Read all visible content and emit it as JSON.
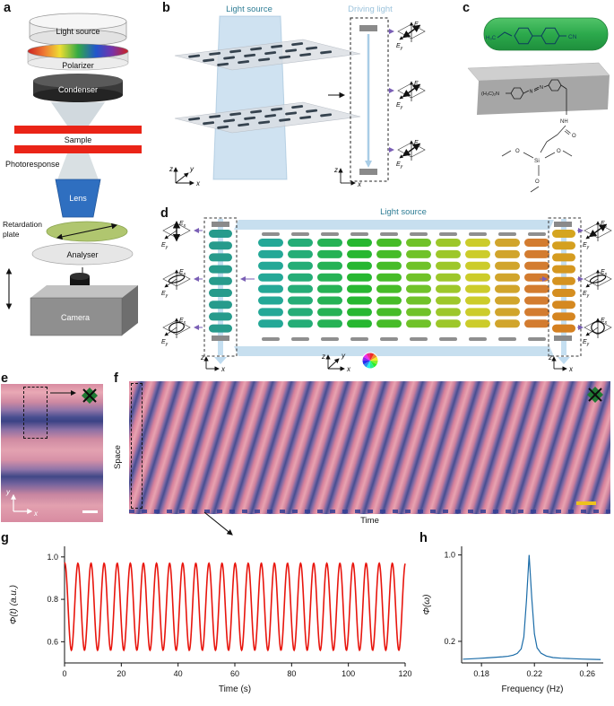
{
  "sym": {
    "E": "E",
    "x": "x",
    "y": "y",
    "z": "z"
  },
  "panels": {
    "a": {
      "label": "a",
      "light_source": "Light source",
      "polarizer": "Polarizer",
      "condenser": "Condenser",
      "sample": "Sample",
      "photoresponse": "Photoresponse",
      "lens": "Lens",
      "retardation_line1": "Retardation",
      "retardation_line2": "plate",
      "analyser": "Analyser",
      "camera": "Camera"
    },
    "b": {
      "label": "b",
      "light_source": "Light source",
      "driving_light": "Driving light"
    },
    "c": {
      "label": "c",
      "top_molecule": {
        "left_group": "H₃C",
        "right_group": "CN"
      },
      "bottom_molecule": {
        "amine_group": "(H₃C)₂N",
        "azo_n1": "N",
        "azo_n2": "N",
        "amide_group": "NH",
        "carbonyl_o": "O",
        "silicon": "Si",
        "ethoxy_o1": "O",
        "ethoxy_o2": "O",
        "ethoxy_o3": "O"
      }
    },
    "d": {
      "label": "d",
      "light_source": "Light source"
    },
    "e": {
      "label": "e"
    },
    "f": {
      "label": "f",
      "space_axis_label": "Space",
      "time_axis_label": "Time"
    },
    "g": {
      "label": "g"
    },
    "h": {
      "label": "h"
    }
  },
  "colors": {
    "trace_g_red": "#e8150d",
    "trace_h_blue": "#1b6ca8",
    "scale_bar_e": "#ffffff",
    "scale_bar_f": "#edc21f",
    "driving_light_blue": "#a9cde6",
    "light_source_teal": "#2e7d95",
    "arrow_purple": "#7a5fb5",
    "stripe_pink": "#d8829c",
    "stripe_blue": "#474d90"
  },
  "chart_data": [
    {
      "id": "g",
      "type": "line",
      "title": "",
      "xlabel": "Time (s)",
      "ylabel": "Φ(t) (a.u.)",
      "xlim": [
        0,
        120
      ],
      "ylim": [
        0.5,
        1.05
      ],
      "xtick_values": [
        0,
        20,
        40,
        60,
        80,
        100,
        120
      ],
      "xtick_labels": [
        "0",
        "20",
        "40",
        "60",
        "80",
        "100",
        "120"
      ],
      "ytick_values": [
        0.6,
        0.8,
        1.0
      ],
      "ytick_labels": [
        "0.6",
        "0.8",
        "1.0"
      ],
      "grid": false,
      "legend": null,
      "series": [
        {
          "name": "phase-oscillation",
          "color": "#e8150d",
          "stroke_width": 1.6,
          "waveform": {
            "kind": "sine",
            "mean": 0.765,
            "amplitude": 0.205,
            "period_s": 4.615,
            "phase_s": 1.05,
            "t_start": 0,
            "t_end": 120,
            "dt": 0.12
          }
        }
      ]
    },
    {
      "id": "h",
      "type": "line",
      "title": "",
      "xlabel": "Frequency (Hz)",
      "ylabel": "Φ(ω)",
      "xlim": [
        0.165,
        0.272
      ],
      "ylim": [
        0,
        1.08
      ],
      "xtick_values": [
        0.18,
        0.22,
        0.26
      ],
      "xtick_labels": [
        "0.18",
        "0.22",
        "0.26"
      ],
      "ytick_values": [
        0.2,
        1.0
      ],
      "ytick_labels": [
        "0.2",
        "1.0"
      ],
      "grid": false,
      "legend": null,
      "peak_frequency_hz": 0.216,
      "series": [
        {
          "name": "fourier-spectrum",
          "color": "#1b6ca8",
          "stroke_width": 1.2,
          "points": [
            [
              0.166,
              0.035
            ],
            [
              0.172,
              0.038
            ],
            [
              0.178,
              0.042
            ],
            [
              0.184,
              0.047
            ],
            [
              0.19,
              0.052
            ],
            [
              0.196,
              0.057
            ],
            [
              0.2,
              0.062
            ],
            [
              0.204,
              0.072
            ],
            [
              0.207,
              0.088
            ],
            [
              0.21,
              0.13
            ],
            [
              0.212,
              0.24
            ],
            [
              0.214,
              0.58
            ],
            [
              0.216,
              1.0
            ],
            [
              0.218,
              0.6
            ],
            [
              0.22,
              0.27
            ],
            [
              0.222,
              0.14
            ],
            [
              0.225,
              0.09
            ],
            [
              0.229,
              0.064
            ],
            [
              0.234,
              0.05
            ],
            [
              0.24,
              0.044
            ],
            [
              0.248,
              0.04
            ],
            [
              0.256,
              0.036
            ],
            [
              0.264,
              0.033
            ],
            [
              0.27,
              0.031
            ]
          ]
        }
      ]
    }
  ]
}
